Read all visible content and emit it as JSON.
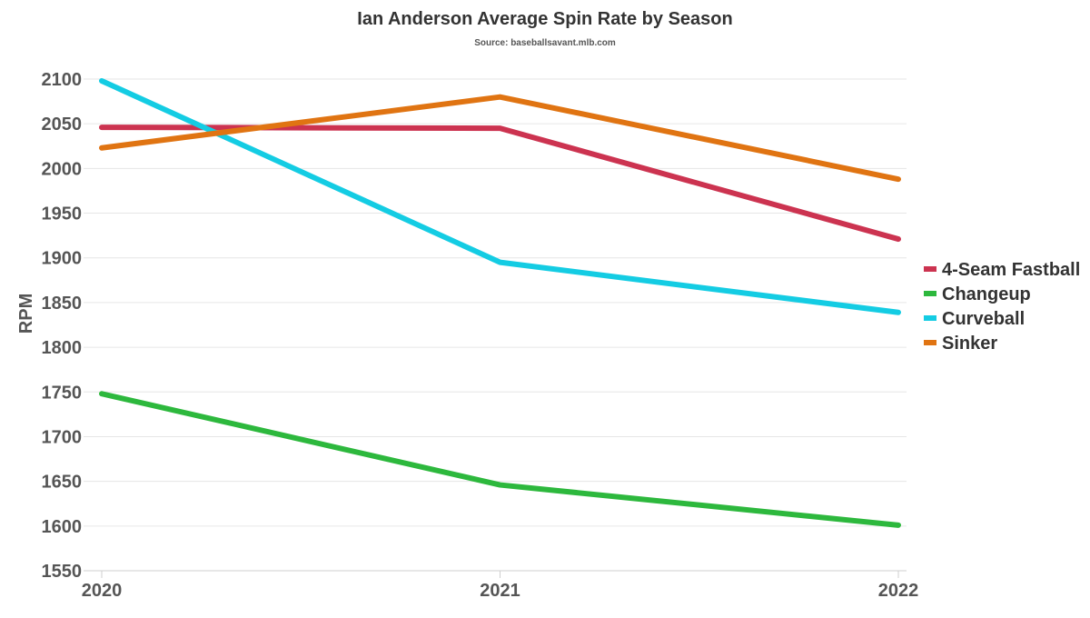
{
  "chart_data": {
    "type": "line",
    "title": "Ian Anderson Average Spin Rate by Season",
    "subtitle": "Source: baseballsavant.mlb.com",
    "xlabel": "",
    "ylabel": "RPM",
    "x": [
      "2020",
      "2021",
      "2022"
    ],
    "ylim": [
      1550,
      2100
    ],
    "yticks": [
      1550,
      1600,
      1650,
      1700,
      1750,
      1800,
      1850,
      1900,
      1950,
      2000,
      2050,
      2100
    ],
    "grid": true,
    "legend_position": "right",
    "series": [
      {
        "name": "4-Seam Fastball",
        "color": "#cc3350",
        "values": [
          2046,
          2045,
          1921
        ]
      },
      {
        "name": "Changeup",
        "color": "#2db83d",
        "values": [
          1748,
          1646,
          1601
        ]
      },
      {
        "name": "Curveball",
        "color": "#14cce3",
        "values": [
          2098,
          1895,
          1839
        ]
      },
      {
        "name": "Sinker",
        "color": "#e07412",
        "values": [
          2023,
          2080,
          1988
        ]
      }
    ]
  }
}
